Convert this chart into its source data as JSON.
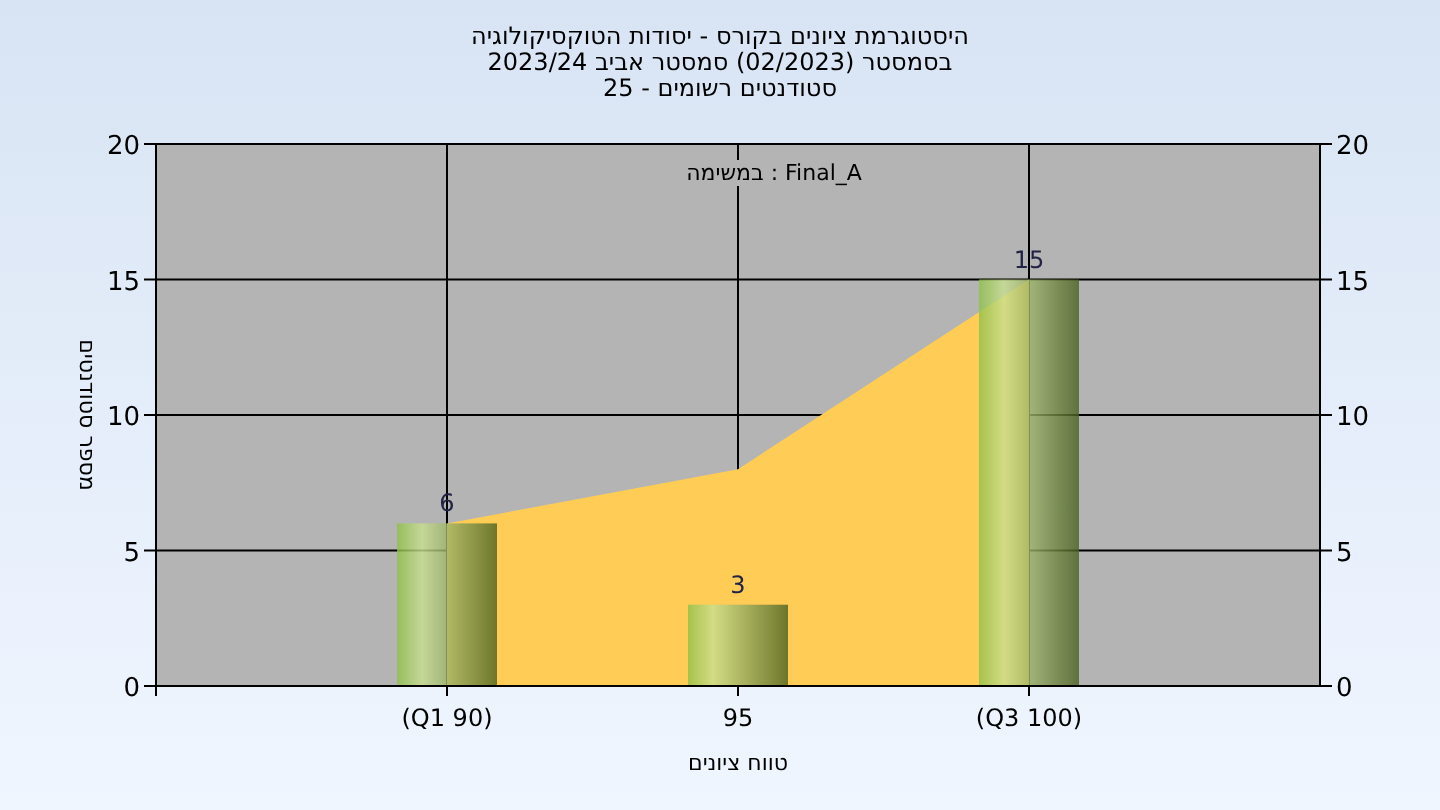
{
  "chart_data": {
    "type": "bar",
    "title": "היסטוגרמת ציונים בקורס - יסודות הטוקסיקולוגיה",
    "subtitle": [
      "בסמסטר  (02/2023)  סמסטר אביב 2023/24",
      "סטודנטים רשומים - 25"
    ],
    "xlabel": "טווח ציונים",
    "ylabel": "מספר סטודנטים",
    "annotations": [
      "במשימה : Final_A"
    ],
    "categories": [
      "(Q1 90)",
      "95",
      "(Q3 100)"
    ],
    "series": [
      {
        "type": "area",
        "color": "#ffcc55",
        "values": [
          6,
          8,
          15
        ]
      },
      {
        "color": "#8fc048",
        "values": [
          6,
          3,
          15
        ],
        "value_labels": [
          "6",
          "3",
          "15"
        ]
      }
    ],
    "ylim": [
      0,
      20
    ],
    "yticks": [
      0,
      5,
      10,
      15,
      20
    ],
    "y2lim": [
      0,
      20
    ],
    "y2ticks": [
      0,
      5,
      10,
      15,
      20
    ],
    "grid": true
  }
}
